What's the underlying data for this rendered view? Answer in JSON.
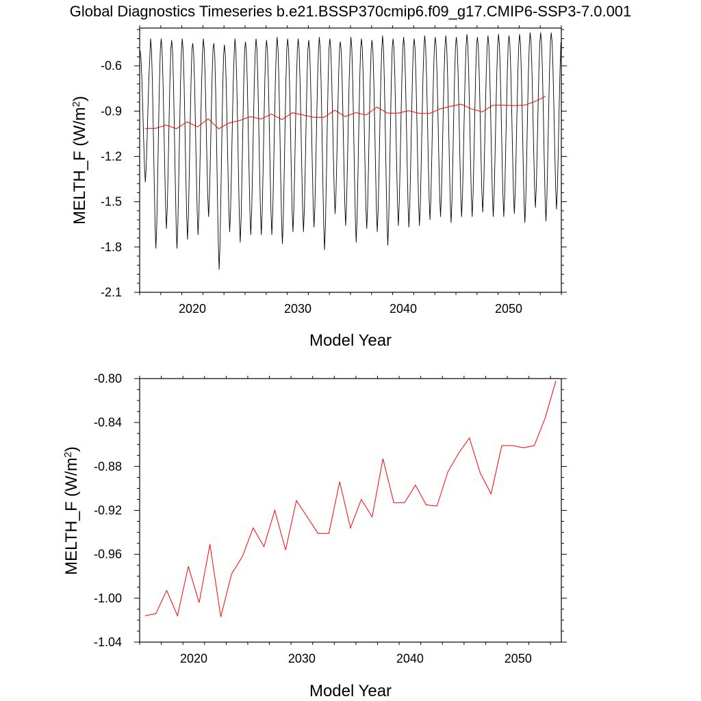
{
  "title": "Global Diagnostics Timeseries b.e21.BSSP370cmip6.f09_g17.CMIP6-SSP3-7.0.001",
  "colors": {
    "monthly": "#000000",
    "annual": "#ff0000"
  },
  "chart_data": [
    {
      "type": "line",
      "xlabel": "Model Year",
      "ylabel_main": "MELTH_F (W/m",
      "ylabel_sup": "2",
      "ylabel_close": ")",
      "xlim": [
        2015,
        2055
      ],
      "ylim": [
        -2.1,
        -0.35
      ],
      "xticks": [
        2020,
        2030,
        2040,
        2050
      ],
      "xtick_labels": [
        "2020",
        "2030",
        "2040",
        "2050"
      ],
      "yticks": [
        -0.6,
        -0.9,
        -1.2,
        -1.5,
        -1.8,
        -2.1
      ],
      "ytick_labels": [
        "-0.6",
        "-0.9",
        "-1.2",
        "-1.5",
        "-1.8",
        "-2.1"
      ],
      "monthly_series": {
        "start_year": 2015,
        "cycle_min_month": 8,
        "cycle_max_month": 0,
        "annual_maxima": [
          -0.5,
          -0.42,
          -0.42,
          -0.43,
          -0.42,
          -0.45,
          -0.42,
          -0.45,
          -0.46,
          -0.42,
          -0.44,
          -0.42,
          -0.43,
          -0.41,
          -0.42,
          -0.42,
          -0.43,
          -0.41,
          -0.42,
          -0.44,
          -0.41,
          -0.42,
          -0.43,
          -0.4,
          -0.42,
          -0.41,
          -0.42,
          -0.4,
          -0.41,
          -0.4,
          -0.41,
          -0.39,
          -0.41,
          -0.4,
          -0.39,
          -0.4,
          -0.39,
          -0.38,
          -0.38,
          -0.38
        ],
        "annual_minima": [
          -1.37,
          -1.81,
          -1.68,
          -1.81,
          -1.75,
          -1.72,
          -1.6,
          -1.95,
          -1.7,
          -1.77,
          -1.72,
          -1.72,
          -1.72,
          -1.78,
          -1.7,
          -1.7,
          -1.67,
          -1.82,
          -1.58,
          -1.66,
          -1.77,
          -1.68,
          -1.7,
          -1.79,
          -1.66,
          -1.67,
          -1.66,
          -1.62,
          -1.6,
          -1.64,
          -1.6,
          -1.6,
          -1.57,
          -1.6,
          -1.6,
          -1.58,
          -1.64,
          -1.54,
          -1.63,
          -1.55
        ]
      },
      "series": [
        {
          "x": [
            2015.5,
            2016.5,
            2017.5,
            2018.5,
            2019.5,
            2020.5,
            2021.5,
            2022.5,
            2023.5,
            2024.5,
            2025.5,
            2026.5,
            2027.5,
            2028.5,
            2029.5,
            2030.5,
            2031.5,
            2032.5,
            2033.5,
            2034.5,
            2035.5,
            2036.5,
            2037.5,
            2038.5,
            2039.5,
            2040.5,
            2041.5,
            2042.5,
            2043.5,
            2044.5,
            2045.5,
            2046.5,
            2047.5,
            2048.5,
            2049.5,
            2050.5,
            2051.5,
            2052.5,
            2053.5
          ],
          "values": [
            -1.016,
            -1.014,
            -0.993,
            -1.016,
            -0.971,
            -1.004,
            -0.951,
            -1.017,
            -0.978,
            -0.962,
            -0.936,
            -0.953,
            -0.92,
            -0.956,
            -0.911,
            -0.926,
            -0.941,
            -0.941,
            -0.894,
            -0.936,
            -0.91,
            -0.926,
            -0.873,
            -0.913,
            -0.913,
            -0.897,
            -0.915,
            -0.916,
            -0.885,
            -0.868,
            -0.854,
            -0.886,
            -0.905,
            -0.861,
            -0.861,
            -0.863,
            -0.861,
            -0.836,
            -0.802
          ]
        }
      ]
    },
    {
      "type": "line",
      "xlabel": "Model Year",
      "ylabel_main": "MELTH_F (W/m",
      "ylabel_sup": "2",
      "ylabel_close": ")",
      "xlim": [
        2015,
        2054
      ],
      "ylim": [
        -1.04,
        -0.8
      ],
      "xticks": [
        2020,
        2030,
        2040,
        2050
      ],
      "xtick_labels": [
        "2020",
        "2030",
        "2040",
        "2050"
      ],
      "yticks": [
        -0.8,
        -0.84,
        -0.88,
        -0.92,
        -0.96,
        -1.0,
        -1.04
      ],
      "ytick_labels": [
        "-0.80",
        "-0.84",
        "-0.88",
        "-0.92",
        "-0.96",
        "-1.00",
        "-1.04"
      ],
      "series": [
        {
          "x": [
            2015.5,
            2016.5,
            2017.5,
            2018.5,
            2019.5,
            2020.5,
            2021.5,
            2022.5,
            2023.5,
            2024.5,
            2025.5,
            2026.5,
            2027.5,
            2028.5,
            2029.5,
            2030.5,
            2031.5,
            2032.5,
            2033.5,
            2034.5,
            2035.5,
            2036.5,
            2037.5,
            2038.5,
            2039.5,
            2040.5,
            2041.5,
            2042.5,
            2043.5,
            2044.5,
            2045.5,
            2046.5,
            2047.5,
            2048.5,
            2049.5,
            2050.5,
            2051.5,
            2052.5,
            2053.5
          ],
          "values": [
            -1.016,
            -1.014,
            -0.993,
            -1.016,
            -0.971,
            -1.004,
            -0.951,
            -1.017,
            -0.978,
            -0.962,
            -0.936,
            -0.953,
            -0.92,
            -0.956,
            -0.911,
            -0.926,
            -0.941,
            -0.941,
            -0.894,
            -0.936,
            -0.91,
            -0.926,
            -0.873,
            -0.913,
            -0.913,
            -0.897,
            -0.915,
            -0.916,
            -0.885,
            -0.868,
            -0.854,
            -0.886,
            -0.905,
            -0.861,
            -0.861,
            -0.863,
            -0.861,
            -0.836,
            -0.802
          ]
        }
      ]
    }
  ]
}
